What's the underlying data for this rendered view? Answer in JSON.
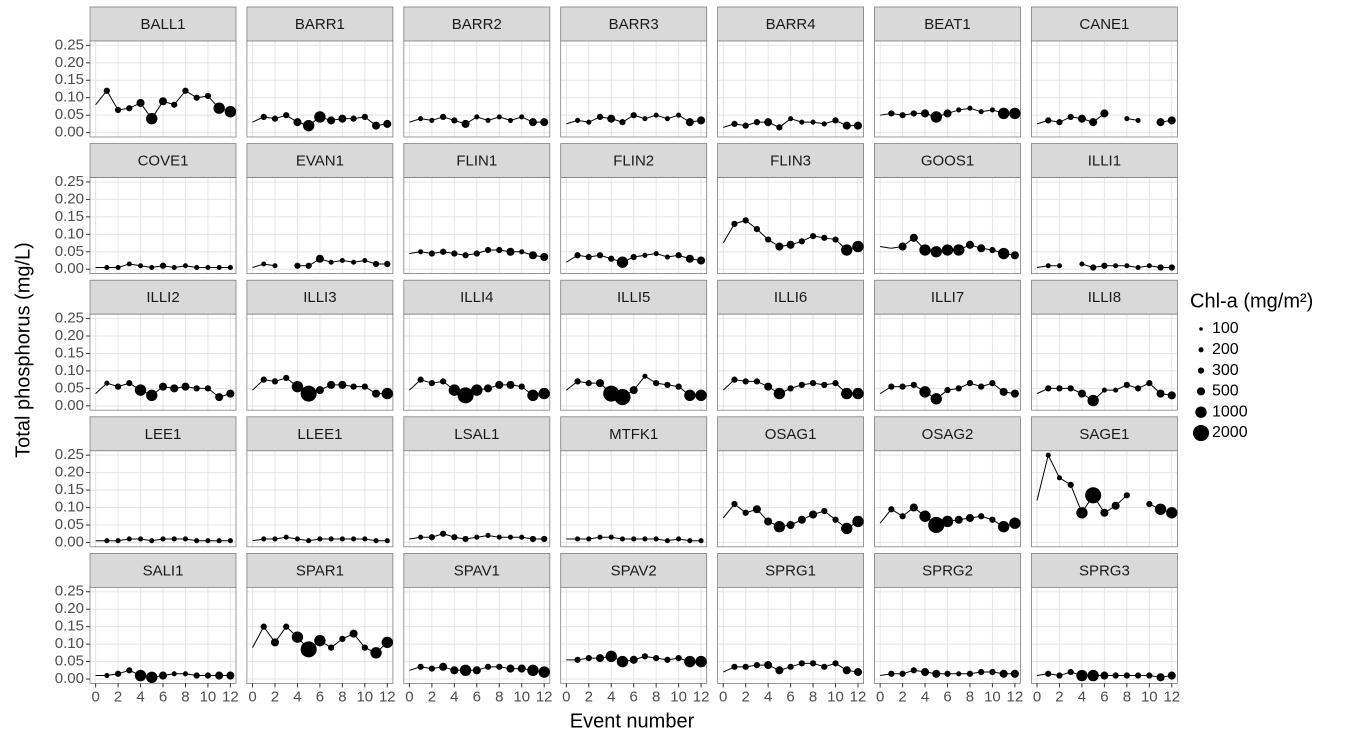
{
  "chart_data": {
    "type": "bubble",
    "x_label": "Event number",
    "y_label": "Total phosphorus (mg/L)",
    "legend_title": "Chl-a (mg/m²)",
    "legend_sizes": [
      100,
      200,
      300,
      500,
      1000,
      2000
    ],
    "xlim": [
      -0.5,
      12.5
    ],
    "xticks": [
      0,
      2,
      4,
      6,
      8,
      10,
      12
    ],
    "ylim": [
      -0.0125,
      0.2625
    ],
    "yticks": [
      {
        "value": 0,
        "label": "0.00"
      },
      0.05,
      {
        "value": 0.1,
        "label": "0.10"
      },
      0.15,
      {
        "value": 0.2,
        "label": "0.20"
      },
      0.25
    ],
    "grid": true,
    "color": "#000000",
    "x": [
      0,
      1,
      2,
      3,
      4,
      5,
      6,
      7,
      8,
      9,
      10,
      11,
      12
    ],
    "panels": [
      {
        "title": "BALL1",
        "values": [
          0.08,
          0.12,
          0.065,
          0.07,
          0.085,
          0.04,
          0.09,
          0.08,
          0.12,
          0.1,
          0.105,
          0.07,
          0.06
        ],
        "sizes": [
          null,
          300,
          300,
          300,
          500,
          1000,
          500,
          300,
          300,
          300,
          300,
          1000,
          1000
        ]
      },
      {
        "title": "BARR1",
        "values": [
          0.03,
          0.045,
          0.04,
          0.05,
          0.03,
          0.02,
          0.045,
          0.035,
          0.04,
          0.04,
          0.045,
          0.02,
          0.025
        ],
        "sizes": [
          null,
          300,
          300,
          300,
          500,
          1000,
          1000,
          500,
          500,
          300,
          300,
          500,
          500
        ]
      },
      {
        "title": "BARR2",
        "values": [
          0.03,
          0.04,
          0.035,
          0.045,
          0.035,
          0.025,
          0.045,
          0.035,
          0.045,
          0.035,
          0.045,
          0.03,
          0.03
        ],
        "sizes": [
          null,
          200,
          200,
          300,
          300,
          500,
          200,
          200,
          200,
          200,
          200,
          500,
          500
        ]
      },
      {
        "title": "BARR3",
        "values": [
          0.025,
          0.035,
          0.03,
          0.045,
          0.04,
          0.03,
          0.05,
          0.04,
          0.05,
          0.04,
          0.05,
          0.03,
          0.035
        ],
        "sizes": [
          null,
          200,
          200,
          300,
          500,
          300,
          300,
          200,
          200,
          200,
          200,
          500,
          500
        ]
      },
      {
        "title": "BARR4",
        "values": [
          0.015,
          0.025,
          0.02,
          0.03,
          0.03,
          0.015,
          0.04,
          0.03,
          0.03,
          0.025,
          0.035,
          0.02,
          0.02
        ],
        "sizes": [
          null,
          300,
          300,
          300,
          500,
          300,
          200,
          200,
          200,
          200,
          300,
          500,
          500
        ]
      },
      {
        "title": "BEAT1",
        "values": [
          0.05,
          0.055,
          0.05,
          0.055,
          0.055,
          0.045,
          0.055,
          0.065,
          0.07,
          0.06,
          0.065,
          0.055,
          0.055
        ],
        "sizes": [
          null,
          300,
          300,
          300,
          500,
          1000,
          500,
          200,
          200,
          200,
          200,
          1000,
          1000
        ]
      },
      {
        "title": "CANE1",
        "values": [
          0.025,
          0.035,
          0.03,
          0.045,
          0.04,
          0.03,
          0.055,
          null,
          0.04,
          0.035,
          null,
          0.03,
          0.035
        ],
        "sizes": [
          null,
          300,
          300,
          300,
          500,
          500,
          500,
          null,
          200,
          200,
          null,
          500,
          500
        ]
      },
      {
        "title": "COVE1",
        "values": [
          0.005,
          0.005,
          0.005,
          0.015,
          0.01,
          0.005,
          0.01,
          0.005,
          0.01,
          0.005,
          0.005,
          0.005,
          0.005
        ],
        "sizes": [
          null,
          200,
          200,
          200,
          200,
          200,
          300,
          200,
          200,
          200,
          200,
          200,
          200
        ]
      },
      {
        "title": "EVAN1",
        "values": [
          0.005,
          0.015,
          0.01,
          null,
          0.01,
          0.01,
          0.03,
          0.02,
          0.025,
          0.02,
          0.025,
          0.015,
          0.015
        ],
        "sizes": [
          null,
          200,
          200,
          null,
          300,
          300,
          500,
          200,
          200,
          200,
          200,
          300,
          300
        ]
      },
      {
        "title": "FLIN1",
        "values": [
          0.045,
          0.05,
          0.045,
          0.05,
          0.045,
          0.04,
          0.045,
          0.055,
          0.055,
          0.05,
          0.05,
          0.04,
          0.035
        ],
        "sizes": [
          null,
          200,
          300,
          300,
          300,
          300,
          300,
          300,
          300,
          500,
          200,
          500,
          500
        ]
      },
      {
        "title": "FLIN2",
        "values": [
          0.02,
          0.04,
          0.035,
          0.04,
          0.03,
          0.02,
          0.035,
          0.04,
          0.045,
          0.035,
          0.04,
          0.03,
          0.025
        ],
        "sizes": [
          null,
          300,
          300,
          300,
          300,
          1000,
          300,
          200,
          200,
          200,
          300,
          500,
          500
        ]
      },
      {
        "title": "FLIN3",
        "values": [
          0.075,
          0.13,
          0.14,
          0.115,
          0.085,
          0.065,
          0.07,
          0.08,
          0.095,
          0.09,
          0.085,
          0.055,
          0.065
        ],
        "sizes": [
          null,
          300,
          300,
          300,
          300,
          500,
          500,
          300,
          300,
          300,
          300,
          1000,
          1000
        ]
      },
      {
        "title": "GOOS1",
        "values": [
          0.065,
          0.06,
          0.065,
          0.09,
          0.055,
          0.05,
          0.055,
          0.055,
          0.07,
          0.06,
          0.055,
          0.045,
          0.04
        ],
        "sizes": [
          null,
          null,
          500,
          500,
          1000,
          1000,
          1000,
          1000,
          500,
          500,
          300,
          1000,
          500
        ]
      },
      {
        "title": "ILLI1",
        "values": [
          0.005,
          0.01,
          0.01,
          null,
          0.015,
          0.005,
          0.01,
          0.01,
          0.01,
          0.005,
          0.01,
          0.005,
          0.005
        ],
        "sizes": [
          null,
          200,
          200,
          null,
          200,
          300,
          300,
          200,
          200,
          200,
          200,
          300,
          300
        ]
      },
      {
        "title": "ILLI2",
        "values": [
          0.035,
          0.065,
          0.055,
          0.065,
          0.045,
          0.03,
          0.055,
          0.05,
          0.055,
          0.05,
          0.05,
          0.025,
          0.035
        ],
        "sizes": [
          null,
          200,
          300,
          300,
          1000,
          1000,
          500,
          500,
          500,
          300,
          300,
          500,
          500
        ]
      },
      {
        "title": "ILLI3",
        "values": [
          0.045,
          0.075,
          0.07,
          0.08,
          0.055,
          0.035,
          0.045,
          0.06,
          0.06,
          0.055,
          0.055,
          0.035,
          0.035
        ],
        "sizes": [
          null,
          300,
          300,
          300,
          1000,
          2000,
          500,
          500,
          500,
          300,
          300,
          500,
          1000
        ]
      },
      {
        "title": "ILLI4",
        "values": [
          0.045,
          0.075,
          0.065,
          0.07,
          0.045,
          0.03,
          0.045,
          0.05,
          0.06,
          0.06,
          0.055,
          0.03,
          0.035
        ],
        "sizes": [
          null,
          300,
          300,
          300,
          1000,
          2000,
          1000,
          500,
          500,
          500,
          300,
          1000,
          1000
        ]
      },
      {
        "title": "ILLI5",
        "values": [
          0.045,
          0.07,
          0.065,
          0.065,
          0.035,
          0.025,
          0.045,
          0.085,
          0.065,
          0.06,
          0.055,
          0.03,
          0.03
        ],
        "sizes": [
          null,
          300,
          300,
          500,
          2000,
          2000,
          500,
          200,
          300,
          300,
          300,
          1000,
          1000
        ]
      },
      {
        "title": "ILLI6",
        "values": [
          0.045,
          0.075,
          0.07,
          0.07,
          0.055,
          0.035,
          0.05,
          0.06,
          0.065,
          0.06,
          0.065,
          0.035,
          0.035
        ],
        "sizes": [
          null,
          300,
          300,
          300,
          500,
          1000,
          300,
          300,
          300,
          300,
          300,
          1000,
          1000
        ]
      },
      {
        "title": "ILLI7",
        "values": [
          0.035,
          0.055,
          0.055,
          0.06,
          0.04,
          0.02,
          0.045,
          0.05,
          0.065,
          0.055,
          0.065,
          0.04,
          0.035
        ],
        "sizes": [
          null,
          300,
          300,
          300,
          1000,
          1000,
          300,
          300,
          300,
          300,
          300,
          500,
          500
        ]
      },
      {
        "title": "ILLI8",
        "values": [
          0.035,
          0.05,
          0.05,
          0.05,
          0.035,
          0.015,
          0.045,
          0.045,
          0.06,
          0.05,
          0.065,
          0.035,
          0.03
        ],
        "sizes": [
          null,
          300,
          300,
          300,
          500,
          1000,
          200,
          200,
          300,
          300,
          300,
          500,
          500
        ]
      },
      {
        "title": "LEE1",
        "values": [
          0.005,
          0.005,
          0.005,
          0.01,
          0.01,
          0.005,
          0.01,
          0.01,
          0.01,
          0.005,
          0.005,
          0.005,
          0.005
        ],
        "sizes": [
          null,
          200,
          200,
          200,
          200,
          200,
          200,
          200,
          200,
          200,
          200,
          200,
          200
        ]
      },
      {
        "title": "LLEE1",
        "values": [
          0.005,
          0.01,
          0.01,
          0.015,
          0.01,
          0.005,
          0.01,
          0.01,
          0.01,
          0.01,
          0.01,
          0.005,
          0.005
        ],
        "sizes": [
          null,
          200,
          200,
          200,
          200,
          200,
          200,
          200,
          200,
          200,
          200,
          200,
          200
        ]
      },
      {
        "title": "LSAL1",
        "values": [
          0.01,
          0.015,
          0.015,
          0.025,
          0.015,
          0.01,
          0.015,
          0.02,
          0.015,
          0.015,
          0.015,
          0.01,
          0.01
        ],
        "sizes": [
          null,
          200,
          300,
          300,
          300,
          300,
          200,
          200,
          200,
          200,
          200,
          300,
          300
        ]
      },
      {
        "title": "MTFK1",
        "values": [
          0.01,
          0.01,
          0.01,
          0.015,
          0.015,
          0.01,
          0.01,
          0.01,
          0.01,
          0.005,
          0.01,
          0.005,
          0.005
        ],
        "sizes": [
          null,
          200,
          200,
          200,
          200,
          200,
          200,
          200,
          200,
          200,
          200,
          200,
          200
        ]
      },
      {
        "title": "OSAG1",
        "values": [
          0.07,
          0.11,
          0.085,
          0.095,
          0.06,
          0.045,
          0.05,
          0.065,
          0.08,
          0.09,
          0.065,
          0.04,
          0.06
        ],
        "sizes": [
          null,
          300,
          300,
          500,
          500,
          1000,
          500,
          500,
          500,
          300,
          300,
          1000,
          1000
        ]
      },
      {
        "title": "OSAG2",
        "values": [
          0.055,
          0.095,
          0.075,
          0.1,
          0.075,
          0.05,
          0.06,
          0.065,
          0.07,
          0.075,
          0.065,
          0.045,
          0.055
        ],
        "sizes": [
          null,
          300,
          300,
          500,
          1000,
          2000,
          1000,
          500,
          500,
          300,
          300,
          1000,
          1000
        ]
      },
      {
        "title": "SAGE1",
        "values": [
          0.12,
          0.25,
          0.185,
          0.165,
          0.085,
          0.135,
          0.085,
          0.105,
          0.135,
          null,
          0.11,
          0.095,
          0.085
        ],
        "sizes": [
          null,
          200,
          200,
          300,
          1000,
          2000,
          500,
          500,
          300,
          null,
          300,
          1000,
          1000
        ]
      },
      {
        "title": "SALI1",
        "values": [
          0.01,
          0.01,
          0.015,
          0.025,
          0.01,
          0.005,
          0.01,
          0.015,
          0.015,
          0.01,
          0.01,
          0.01,
          0.01
        ],
        "sizes": [
          null,
          200,
          300,
          300,
          1000,
          1000,
          500,
          200,
          200,
          300,
          300,
          500,
          500
        ]
      },
      {
        "title": "SPAR1",
        "values": [
          0.09,
          0.15,
          0.105,
          0.15,
          0.12,
          0.085,
          0.11,
          0.09,
          0.115,
          0.13,
          0.09,
          0.075,
          0.105
        ],
        "sizes": [
          null,
          300,
          500,
          300,
          1000,
          2000,
          1000,
          300,
          300,
          500,
          300,
          1000,
          1000
        ]
      },
      {
        "title": "SPAV1",
        "values": [
          0.025,
          0.035,
          0.03,
          0.035,
          0.025,
          0.025,
          0.025,
          0.035,
          0.035,
          0.03,
          0.03,
          0.025,
          0.02
        ],
        "sizes": [
          null,
          300,
          300,
          500,
          500,
          1000,
          500,
          300,
          300,
          500,
          500,
          1000,
          1000
        ]
      },
      {
        "title": "SPAV2",
        "values": [
          0.055,
          0.055,
          0.06,
          0.06,
          0.065,
          0.05,
          0.055,
          0.065,
          0.06,
          0.055,
          0.06,
          0.05,
          0.05
        ],
        "sizes": [
          null,
          300,
          300,
          500,
          1000,
          1000,
          500,
          300,
          300,
          300,
          300,
          1000,
          1000
        ]
      },
      {
        "title": "SPRG1",
        "values": [
          0.02,
          0.035,
          0.035,
          0.04,
          0.04,
          0.025,
          0.035,
          0.045,
          0.045,
          0.035,
          0.045,
          0.025,
          0.02
        ],
        "sizes": [
          null,
          300,
          300,
          300,
          500,
          500,
          300,
          300,
          300,
          300,
          300,
          500,
          500
        ]
      },
      {
        "title": "SPRG2",
        "values": [
          0.01,
          0.015,
          0.015,
          0.025,
          0.02,
          0.015,
          0.015,
          0.015,
          0.015,
          0.02,
          0.02,
          0.015,
          0.015
        ],
        "sizes": [
          null,
          300,
          300,
          300,
          500,
          500,
          300,
          200,
          300,
          300,
          300,
          500,
          500
        ]
      },
      {
        "title": "SPRG3",
        "values": [
          0.01,
          0.015,
          0.01,
          0.02,
          0.01,
          0.01,
          0.01,
          0.01,
          0.01,
          0.01,
          0.01,
          0.005,
          0.01
        ],
        "sizes": [
          null,
          300,
          300,
          300,
          1000,
          1000,
          500,
          300,
          300,
          300,
          300,
          500,
          500
        ]
      }
    ]
  }
}
